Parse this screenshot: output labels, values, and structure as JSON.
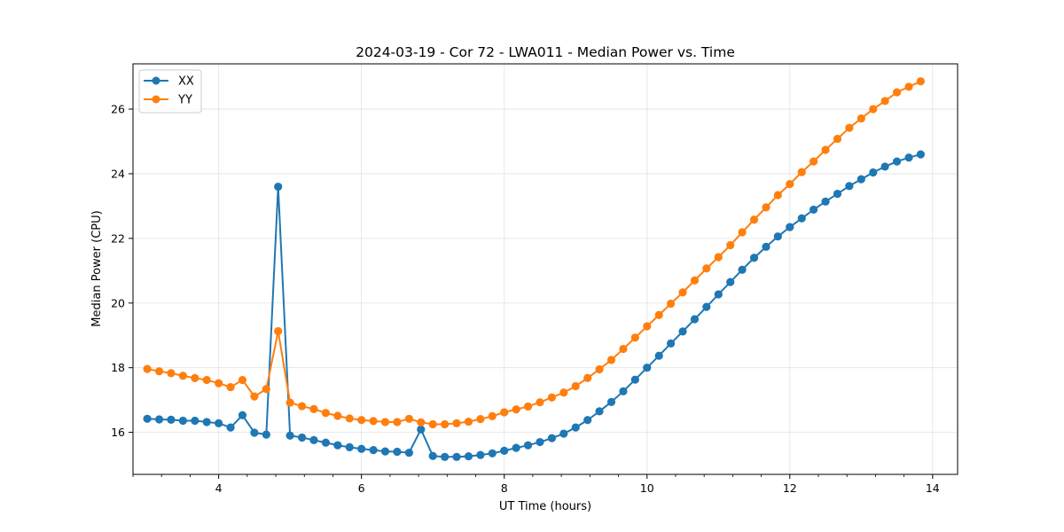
{
  "chart_data": {
    "type": "line",
    "title": "2024-03-19 - Cor 72 - LWA011 - Median Power vs. Time",
    "xlabel": "UT Time (hours)",
    "ylabel": "Median Power (CPU)",
    "xlim": [
      2.8,
      14.35
    ],
    "ylim": [
      14.7,
      27.4
    ],
    "xticks": [
      4,
      6,
      8,
      10,
      12,
      14
    ],
    "xtick_labels": [
      "4",
      "6",
      "8",
      "10",
      "12",
      "14"
    ],
    "yticks": [
      16,
      18,
      20,
      22,
      24,
      26
    ],
    "ytick_labels": [
      "16",
      "18",
      "20",
      "22",
      "24",
      "26"
    ],
    "grid": true,
    "legend_position": "top-left",
    "x": [
      3.0,
      3.167,
      3.333,
      3.5,
      3.667,
      3.833,
      4.0,
      4.167,
      4.333,
      4.5,
      4.667,
      4.833,
      5.0,
      5.167,
      5.333,
      5.5,
      5.667,
      5.833,
      6.0,
      6.167,
      6.333,
      6.5,
      6.667,
      6.833,
      7.0,
      7.167,
      7.333,
      7.5,
      7.667,
      7.833,
      8.0,
      8.167,
      8.333,
      8.5,
      8.667,
      8.833,
      9.0,
      9.167,
      9.333,
      9.5,
      9.667,
      9.833,
      10.0,
      10.167,
      10.333,
      10.5,
      10.667,
      10.833,
      11.0,
      11.167,
      11.333,
      11.5,
      11.667,
      11.833,
      12.0,
      12.167,
      12.333,
      12.5,
      12.667,
      12.833,
      13.0,
      13.167,
      13.333,
      13.5,
      13.667,
      13.833
    ],
    "series": [
      {
        "name": "XX",
        "color": "#1f77b4",
        "values": [
          16.42,
          16.4,
          16.39,
          16.36,
          16.36,
          16.32,
          16.28,
          16.15,
          16.53,
          15.99,
          15.93,
          23.6,
          15.9,
          15.84,
          15.76,
          15.68,
          15.6,
          15.54,
          15.49,
          15.45,
          15.41,
          15.4,
          15.37,
          16.09,
          15.27,
          15.24,
          15.24,
          15.26,
          15.3,
          15.35,
          15.43,
          15.52,
          15.6,
          15.7,
          15.82,
          15.96,
          16.15,
          16.38,
          16.65,
          16.94,
          17.27,
          17.63,
          18.0,
          18.37,
          18.75,
          19.12,
          19.5,
          19.88,
          20.27,
          20.65,
          21.03,
          21.4,
          21.74,
          22.06,
          22.35,
          22.62,
          22.89,
          23.14,
          23.38,
          23.62,
          23.83,
          24.04,
          24.22,
          24.38,
          24.5,
          24.6
        ]
      },
      {
        "name": "YY",
        "color": "#ff7f0e",
        "values": [
          17.96,
          17.89,
          17.83,
          17.75,
          17.68,
          17.62,
          17.52,
          17.4,
          17.62,
          17.11,
          17.34,
          19.13,
          16.92,
          16.81,
          16.72,
          16.6,
          16.51,
          16.43,
          16.38,
          16.35,
          16.32,
          16.32,
          16.42,
          16.31,
          16.25,
          16.25,
          16.28,
          16.33,
          16.41,
          16.5,
          16.62,
          16.71,
          16.8,
          16.93,
          17.08,
          17.23,
          17.43,
          17.68,
          17.95,
          18.24,
          18.58,
          18.93,
          19.28,
          19.63,
          19.98,
          20.33,
          20.7,
          21.07,
          21.42,
          21.79,
          22.19,
          22.58,
          22.96,
          23.34,
          23.68,
          24.05,
          24.38,
          24.74,
          25.08,
          25.42,
          25.71,
          26.0,
          26.25,
          26.52,
          26.69,
          26.86
        ]
      }
    ]
  }
}
